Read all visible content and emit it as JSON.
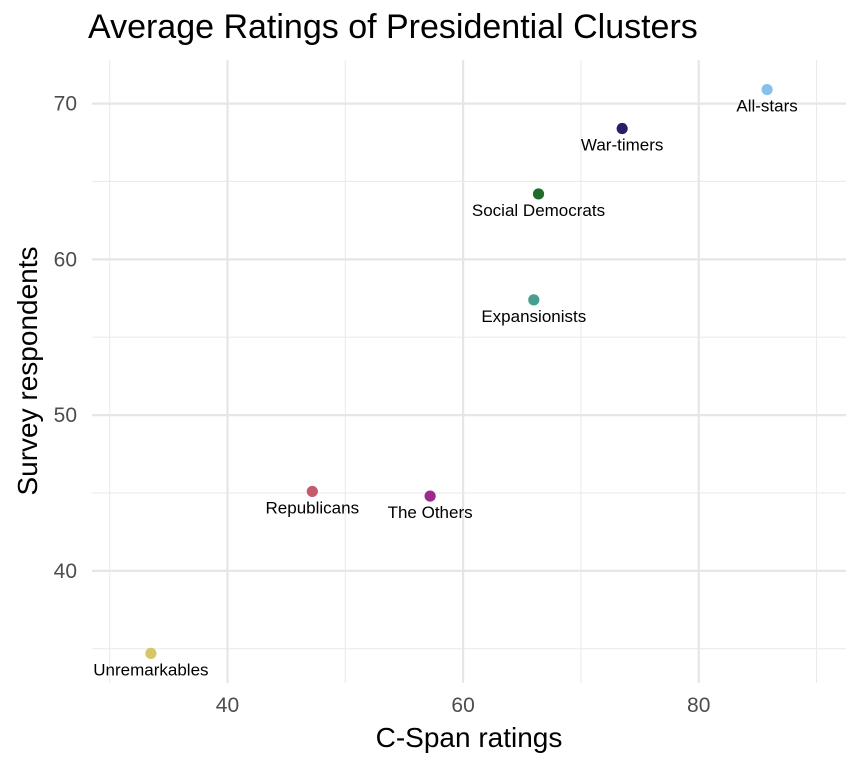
{
  "chart_data": {
    "type": "scatter",
    "title": "Average Ratings of Presidential Clusters",
    "xlabel": "C-Span ratings",
    "ylabel": "Survey respondents",
    "xlim": [
      28.5,
      92.5
    ],
    "ylim": [
      32.8,
      72.8
    ],
    "x_ticks": [
      40,
      60,
      80
    ],
    "y_ticks": [
      40,
      50,
      60,
      70
    ],
    "x_minor": [
      30,
      50,
      70,
      90
    ],
    "y_minor": [
      35,
      45,
      55,
      65
    ],
    "grid": true,
    "points": [
      {
        "label": "All-stars",
        "x": 85.8,
        "y": 70.9,
        "color": "#85c1e9"
      },
      {
        "label": "War-timers",
        "x": 73.5,
        "y": 68.4,
        "color": "#2a1b6b"
      },
      {
        "label": "Social Democrats",
        "x": 66.4,
        "y": 64.2,
        "color": "#1e6b2a"
      },
      {
        "label": "Expansionists",
        "x": 66.0,
        "y": 57.4,
        "color": "#45a08d"
      },
      {
        "label": "Republicans",
        "x": 47.2,
        "y": 45.1,
        "color": "#c45a6a"
      },
      {
        "label": "The Others",
        "x": 57.2,
        "y": 44.8,
        "color": "#9b2a8f"
      },
      {
        "label": "Unremarkables",
        "x": 33.5,
        "y": 34.7,
        "color": "#d8c56a"
      }
    ]
  }
}
